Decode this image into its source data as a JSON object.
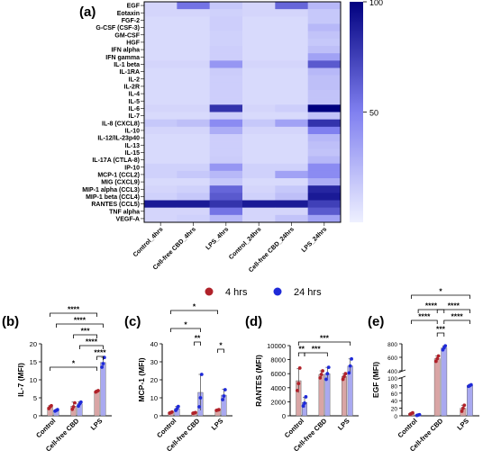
{
  "colors": {
    "four_hrs_bar": "#d9a5a5",
    "four_hrs_dot": "#b0222a",
    "twenty_four_hrs_bar": "#a9a9f0",
    "twenty_four_hrs_dot": "#1f2ad8",
    "heat_low": "#eef0ff",
    "heat_high": "#00007f"
  },
  "legend": {
    "four_hrs": "4 hrs",
    "twenty_four_hrs": "24 hrs"
  },
  "chart_data": [
    {
      "panel": "(a)",
      "type": "heatmap",
      "rows": [
        "EGF",
        "Eotaxin",
        "FGF-2",
        "G-CSF (CSF-3)",
        "GM-CSF",
        "HGF",
        "IFN alpha",
        "IFN gamma",
        "IL-1 beta",
        "IL-1RA",
        "IL-2",
        "IL-2R",
        "IL-4",
        "IL-5",
        "IL-6",
        "IL-7",
        "IL-8 (CXCL8)",
        "IL-10",
        "IL-12/IL-23p40",
        "IL-13",
        "IL-15",
        "IL-17A (CTLA-8)",
        "IP-10",
        "MCP-1 (CCL2)",
        "MIG (CXCL9)",
        "MIP-1 alpha (CCL3)",
        "MIP-1 beta (CCL4)",
        "RANTES (CCL5)",
        "TNF alpha",
        "VEGF-A"
      ],
      "columns": [
        "Control_4hrs",
        "Cell-free CBD_4hrs",
        "LPS_4hrs",
        "Control_24hrs",
        "Cell-free CBD_24hrs",
        "LPS_24hrs"
      ],
      "values": [
        [
          12,
          55,
          18,
          12,
          60,
          25
        ],
        [
          12,
          12,
          14,
          12,
          12,
          18
        ],
        [
          10,
          10,
          15,
          10,
          10,
          18
        ],
        [
          10,
          10,
          15,
          10,
          10,
          25
        ],
        [
          10,
          10,
          14,
          10,
          10,
          20
        ],
        [
          10,
          10,
          14,
          10,
          10,
          18
        ],
        [
          10,
          10,
          15,
          10,
          10,
          22
        ],
        [
          10,
          10,
          15,
          10,
          10,
          35
        ],
        [
          12,
          12,
          40,
          12,
          12,
          65
        ],
        [
          10,
          10,
          16,
          10,
          10,
          25
        ],
        [
          10,
          10,
          15,
          10,
          10,
          22
        ],
        [
          10,
          10,
          15,
          10,
          10,
          22
        ],
        [
          10,
          10,
          15,
          10,
          10,
          20
        ],
        [
          10,
          10,
          15,
          10,
          10,
          20
        ],
        [
          12,
          12,
          80,
          12,
          15,
          100
        ],
        [
          10,
          10,
          15,
          10,
          10,
          20
        ],
        [
          18,
          22,
          45,
          18,
          35,
          80
        ],
        [
          12,
          12,
          30,
          12,
          12,
          50
        ],
        [
          10,
          10,
          15,
          10,
          10,
          25
        ],
        [
          10,
          10,
          15,
          10,
          10,
          22
        ],
        [
          10,
          10,
          15,
          10,
          10,
          20
        ],
        [
          10,
          10,
          16,
          10,
          10,
          25
        ],
        [
          14,
          14,
          40,
          14,
          14,
          45
        ],
        [
          14,
          18,
          25,
          14,
          35,
          45
        ],
        [
          10,
          10,
          18,
          10,
          10,
          30
        ],
        [
          12,
          14,
          60,
          12,
          18,
          85
        ],
        [
          14,
          18,
          65,
          14,
          22,
          90
        ],
        [
          90,
          90,
          80,
          90,
          90,
          75
        ],
        [
          12,
          12,
          55,
          12,
          12,
          65
        ],
        [
          12,
          14,
          25,
          12,
          20,
          35
        ]
      ],
      "colorbar": {
        "min": 0,
        "max": 100,
        "ticks": [
          50,
          100
        ]
      }
    },
    {
      "panel": "(b)",
      "type": "bar",
      "ylabel": "IL-7 (MFI)",
      "categories": [
        "Control",
        "Cell-free CBD",
        "LPS"
      ],
      "ylim": [
        0,
        20
      ],
      "yticks": [
        0,
        5,
        10,
        15,
        20
      ],
      "series": [
        {
          "name": "4 hrs",
          "values": [
            2.4,
            2.7,
            6.8
          ],
          "sd": [
            0.4,
            1.1,
            0.3
          ],
          "points": [
            [
              2.0,
              2.5,
              2.8
            ],
            [
              1.8,
              2.5,
              3.6
            ],
            [
              6.6,
              6.8,
              7.0
            ]
          ]
        },
        {
          "name": "24 hrs",
          "values": [
            1.5,
            3.3,
            14.8
          ],
          "sd": [
            0.2,
            0.6,
            1.4
          ],
          "points": [
            [
              1.3,
              1.5,
              1.7
            ],
            [
              2.7,
              3.3,
              3.8
            ],
            [
              13.5,
              14.5,
              16.2
            ]
          ]
        }
      ],
      "significance": [
        "****",
        "****",
        "***",
        "****",
        "*",
        "****"
      ]
    },
    {
      "panel": "(c)",
      "type": "bar",
      "ylabel": "MCP-1 (MFI)",
      "categories": [
        "Control",
        "Cell-free CBD",
        "LPS"
      ],
      "ylim": [
        0,
        40
      ],
      "yticks": [
        0,
        10,
        20,
        30,
        40
      ],
      "series": [
        {
          "name": "4 hrs",
          "values": [
            1.8,
            1.6,
            3.2
          ],
          "sd": [
            0.4,
            0.3,
            0.3
          ],
          "points": [
            [
              1.5,
              1.8,
              2.1
            ],
            [
              1.4,
              1.6,
              1.8
            ],
            [
              3.0,
              3.2,
              3.4
            ]
          ]
        },
        {
          "name": "24 hrs",
          "values": [
            4.0,
            13.0,
            11.5
          ],
          "sd": [
            1.2,
            10.0,
            3.2
          ],
          "points": [
            [
              3.0,
              4.0,
              5.2
            ],
            [
              5.0,
              10.0,
              23.0
            ],
            [
              9.0,
              11.0,
              14.5
            ]
          ]
        }
      ],
      "significance": [
        "*",
        "*",
        "**",
        "*"
      ]
    },
    {
      "panel": "(d)",
      "type": "bar",
      "ylabel": "RANTES (MFI)",
      "categories": [
        "Control",
        "Cell-free CBD",
        "LPS"
      ],
      "ylim": [
        0,
        10000
      ],
      "yticks": [
        0,
        2000,
        4000,
        6000,
        8000,
        10000
      ],
      "series": [
        {
          "name": "4 hrs",
          "values": [
            5000,
            5900,
            5600
          ],
          "sd": [
            1700,
            500,
            400
          ],
          "points": [
            [
              3600,
              4600,
              6800
            ],
            [
              5400,
              5900,
              6400
            ],
            [
              5200,
              5600,
              6000
            ]
          ]
        },
        {
          "name": "24 hrs",
          "values": [
            1900,
            6000,
            7100
          ],
          "sd": [
            700,
            900,
            1000
          ],
          "points": [
            [
              1400,
              1800,
              2700
            ],
            [
              5200,
              6000,
              6900
            ],
            [
              6100,
              7100,
              8100
            ]
          ]
        }
      ],
      "significance": [
        "***",
        "**",
        "***"
      ]
    },
    {
      "panel": "(e)",
      "type": "bar",
      "ylabel": "EGF (MFI)",
      "categories": [
        "Control",
        "Cell-free CBD",
        "LPS"
      ],
      "ylim": [
        0,
        800
      ],
      "axis_break": [
        100,
        400
      ],
      "yticks": [
        0,
        20,
        40,
        60,
        80,
        100,
        400,
        600,
        800
      ],
      "series": [
        {
          "name": "4 hrs",
          "values": [
            6,
            580,
            20
          ],
          "sd": [
            2,
            40,
            8
          ],
          "points": [
            [
              4,
              6,
              8
            ],
            [
              540,
              580,
              620
            ],
            [
              12,
              20,
              28
            ]
          ]
        },
        {
          "name": "24 hrs",
          "values": [
            2,
            740,
            80
          ],
          "sd": [
            1,
            30,
            3
          ],
          "points": [
            [
              1,
              2,
              3
            ],
            [
              710,
              740,
              770
            ],
            [
              78,
              80,
              82
            ]
          ]
        }
      ],
      "significance": [
        "*",
        "****",
        "****",
        "****",
        "****",
        "***"
      ]
    }
  ]
}
